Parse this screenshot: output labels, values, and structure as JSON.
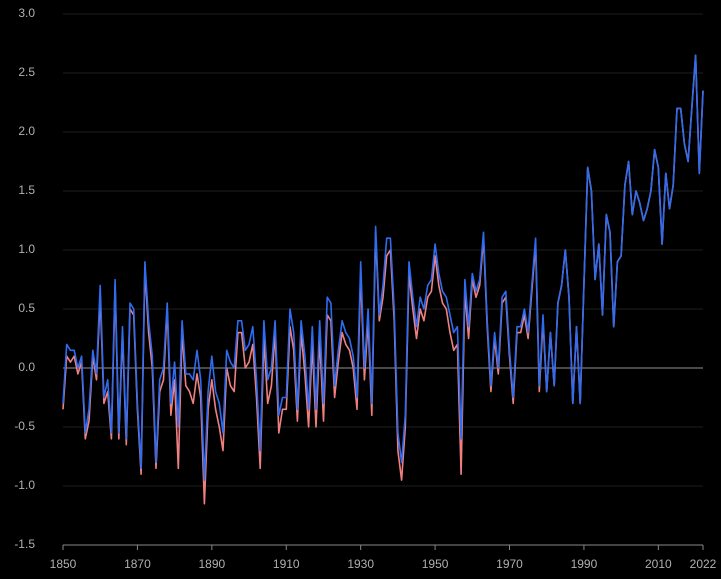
{
  "chart_data": {
    "type": "line",
    "x": [
      1850,
      1851,
      1852,
      1853,
      1854,
      1855,
      1856,
      1857,
      1858,
      1859,
      1860,
      1861,
      1862,
      1863,
      1864,
      1865,
      1866,
      1867,
      1868,
      1869,
      1870,
      1871,
      1872,
      1873,
      1874,
      1875,
      1876,
      1877,
      1878,
      1879,
      1880,
      1881,
      1882,
      1883,
      1884,
      1885,
      1886,
      1887,
      1888,
      1889,
      1890,
      1891,
      1892,
      1893,
      1894,
      1895,
      1896,
      1897,
      1898,
      1899,
      1900,
      1901,
      1902,
      1903,
      1904,
      1905,
      1906,
      1907,
      1908,
      1909,
      1910,
      1911,
      1912,
      1913,
      1914,
      1915,
      1916,
      1917,
      1918,
      1919,
      1920,
      1921,
      1922,
      1923,
      1924,
      1925,
      1926,
      1927,
      1928,
      1929,
      1930,
      1931,
      1932,
      1933,
      1934,
      1935,
      1936,
      1937,
      1938,
      1939,
      1940,
      1941,
      1942,
      1943,
      1944,
      1945,
      1946,
      1947,
      1948,
      1949,
      1950,
      1951,
      1952,
      1953,
      1954,
      1955,
      1956,
      1957,
      1958,
      1959,
      1960,
      1961,
      1962,
      1963,
      1964,
      1965,
      1966,
      1967,
      1968,
      1969,
      1970,
      1971,
      1972,
      1973,
      1974,
      1975,
      1976,
      1977,
      1978,
      1979,
      1980,
      1981,
      1982,
      1983,
      1984,
      1985,
      1986,
      1987,
      1988,
      1989,
      1990,
      1991,
      1992,
      1993,
      1994,
      1995,
      1996,
      1997,
      1998,
      1999,
      2000,
      2001,
      2002,
      2003,
      2004,
      2005,
      2006,
      2007,
      2008,
      2009,
      2010,
      2011,
      2012,
      2013,
      2014,
      2015,
      2016,
      2017,
      2018,
      2019,
      2020,
      2021,
      2022
    ],
    "series": [
      {
        "color": "#f08080",
        "values": [
          -0.35,
          0.1,
          0.05,
          0.1,
          -0.05,
          0.05,
          -0.6,
          -0.45,
          0.1,
          -0.1,
          0.6,
          -0.3,
          -0.2,
          -0.6,
          0.7,
          -0.6,
          0.3,
          -0.65,
          0.5,
          0.45,
          -0.35,
          -0.9,
          0.85,
          0.3,
          0.0,
          -0.85,
          -0.2,
          -0.1,
          0.5,
          -0.4,
          -0.1,
          -0.85,
          0.3,
          -0.15,
          -0.2,
          -0.3,
          -0.05,
          -0.25,
          -1.15,
          -0.35,
          -0.1,
          -0.35,
          -0.5,
          -0.7,
          0.0,
          -0.15,
          -0.2,
          0.3,
          0.3,
          0.0,
          0.05,
          0.2,
          -0.25,
          -0.85,
          0.25,
          -0.3,
          -0.15,
          0.3,
          -0.55,
          -0.35,
          -0.35,
          0.35,
          0.15,
          -0.45,
          0.3,
          -0.05,
          -0.5,
          0.2,
          -0.5,
          0.25,
          -0.45,
          0.45,
          0.4,
          -0.25,
          0.05,
          0.3,
          0.2,
          0.15,
          0.0,
          -0.35,
          0.8,
          -0.1,
          0.4,
          -0.4,
          1.15,
          0.4,
          0.6,
          0.95,
          1.0,
          0.4,
          -0.7,
          -0.95,
          -0.5,
          0.8,
          0.5,
          0.25,
          0.5,
          0.4,
          0.6,
          0.65,
          0.95,
          0.7,
          0.55,
          0.5,
          0.3,
          0.15,
          0.2,
          -0.9,
          0.65,
          0.25,
          0.75,
          0.6,
          0.7,
          1.1,
          0.35,
          -0.2,
          0.25,
          -0.05,
          0.55,
          0.6,
          0.1,
          -0.3,
          0.3,
          0.3,
          0.45,
          0.25,
          0.65,
          1.05,
          -0.2,
          0.4,
          -0.2,
          0.3,
          -0.15,
          0.55,
          0.7,
          1.0,
          0.6,
          -0.3,
          0.35,
          -0.3,
          0.7,
          1.7,
          1.5,
          0.75,
          1.05,
          0.45,
          1.3,
          1.15,
          0.35,
          0.9,
          0.95,
          1.55,
          1.75,
          1.3,
          1.5,
          1.4,
          1.25,
          1.35,
          1.5,
          1.85,
          1.7,
          1.05,
          1.65,
          1.35,
          1.55,
          2.2,
          2.2,
          1.9,
          1.75,
          2.2,
          2.65,
          1.65,
          2.35
        ]
      },
      {
        "color": "#2f6cf0",
        "values": [
          -0.3,
          0.2,
          0.15,
          0.15,
          0.0,
          0.1,
          -0.55,
          -0.35,
          0.15,
          -0.05,
          0.7,
          -0.25,
          -0.1,
          -0.55,
          0.75,
          -0.55,
          0.35,
          -0.6,
          0.55,
          0.5,
          -0.3,
          -0.85,
          0.9,
          0.4,
          0.1,
          -0.8,
          -0.1,
          0.0,
          0.55,
          -0.3,
          0.05,
          -0.5,
          0.4,
          -0.05,
          -0.05,
          -0.1,
          0.15,
          -0.1,
          -0.95,
          -0.2,
          0.1,
          -0.2,
          -0.3,
          -0.55,
          0.15,
          0.05,
          0.0,
          0.4,
          0.4,
          0.15,
          0.2,
          0.35,
          -0.1,
          -0.7,
          0.4,
          -0.1,
          0.0,
          0.4,
          -0.4,
          -0.25,
          -0.25,
          0.5,
          0.3,
          -0.35,
          0.4,
          0.1,
          -0.35,
          0.35,
          -0.35,
          0.4,
          -0.3,
          0.6,
          0.55,
          -0.15,
          0.15,
          0.4,
          0.3,
          0.25,
          0.1,
          -0.25,
          0.9,
          0.0,
          0.5,
          -0.3,
          1.2,
          0.45,
          0.7,
          1.1,
          1.1,
          0.5,
          -0.55,
          -0.8,
          -0.4,
          0.9,
          0.6,
          0.35,
          0.6,
          0.5,
          0.7,
          0.75,
          1.05,
          0.8,
          0.65,
          0.6,
          0.45,
          0.3,
          0.35,
          -0.6,
          0.75,
          0.35,
          0.8,
          0.65,
          0.75,
          1.15,
          0.4,
          -0.15,
          0.3,
          0.0,
          0.6,
          0.65,
          0.15,
          -0.25,
          0.35,
          0.35,
          0.5,
          0.3,
          0.7,
          1.1,
          -0.15,
          0.45,
          -0.2,
          0.3,
          -0.15,
          0.55,
          0.7,
          1.0,
          0.6,
          -0.3,
          0.35,
          -0.3,
          0.7,
          1.7,
          1.5,
          0.75,
          1.05,
          0.45,
          1.3,
          1.15,
          0.35,
          0.9,
          0.95,
          1.55,
          1.75,
          1.3,
          1.5,
          1.4,
          1.25,
          1.35,
          1.5,
          1.85,
          1.7,
          1.05,
          1.65,
          1.35,
          1.55,
          2.2,
          2.2,
          1.9,
          1.75,
          2.2,
          2.65,
          1.65,
          2.35
        ]
      }
    ],
    "xlim": [
      1850,
      2022
    ],
    "xticks": [
      1850,
      1870,
      1890,
      1910,
      1930,
      1950,
      1970,
      1990,
      2010,
      2022
    ],
    "ylim": [
      -1.5,
      3.0
    ],
    "yticks": [
      {
        "value": -1.5,
        "label": "-1.5"
      },
      {
        "value": -1.0,
        "label": "-1.0"
      },
      {
        "value": -0.5,
        "label": "-0.5"
      },
      {
        "value": 0.0,
        "label": "0.0"
      },
      {
        "value": 0.5,
        "label": "0.5"
      },
      {
        "value": 1.0,
        "label": "1.0"
      },
      {
        "value": 1.5,
        "label": "1.5"
      },
      {
        "value": 2.0,
        "label": "2.0"
      },
      {
        "value": 2.5,
        "label": "2.5"
      },
      {
        "value": 3.0,
        "label": "3.0"
      }
    ],
    "grid": true
  }
}
